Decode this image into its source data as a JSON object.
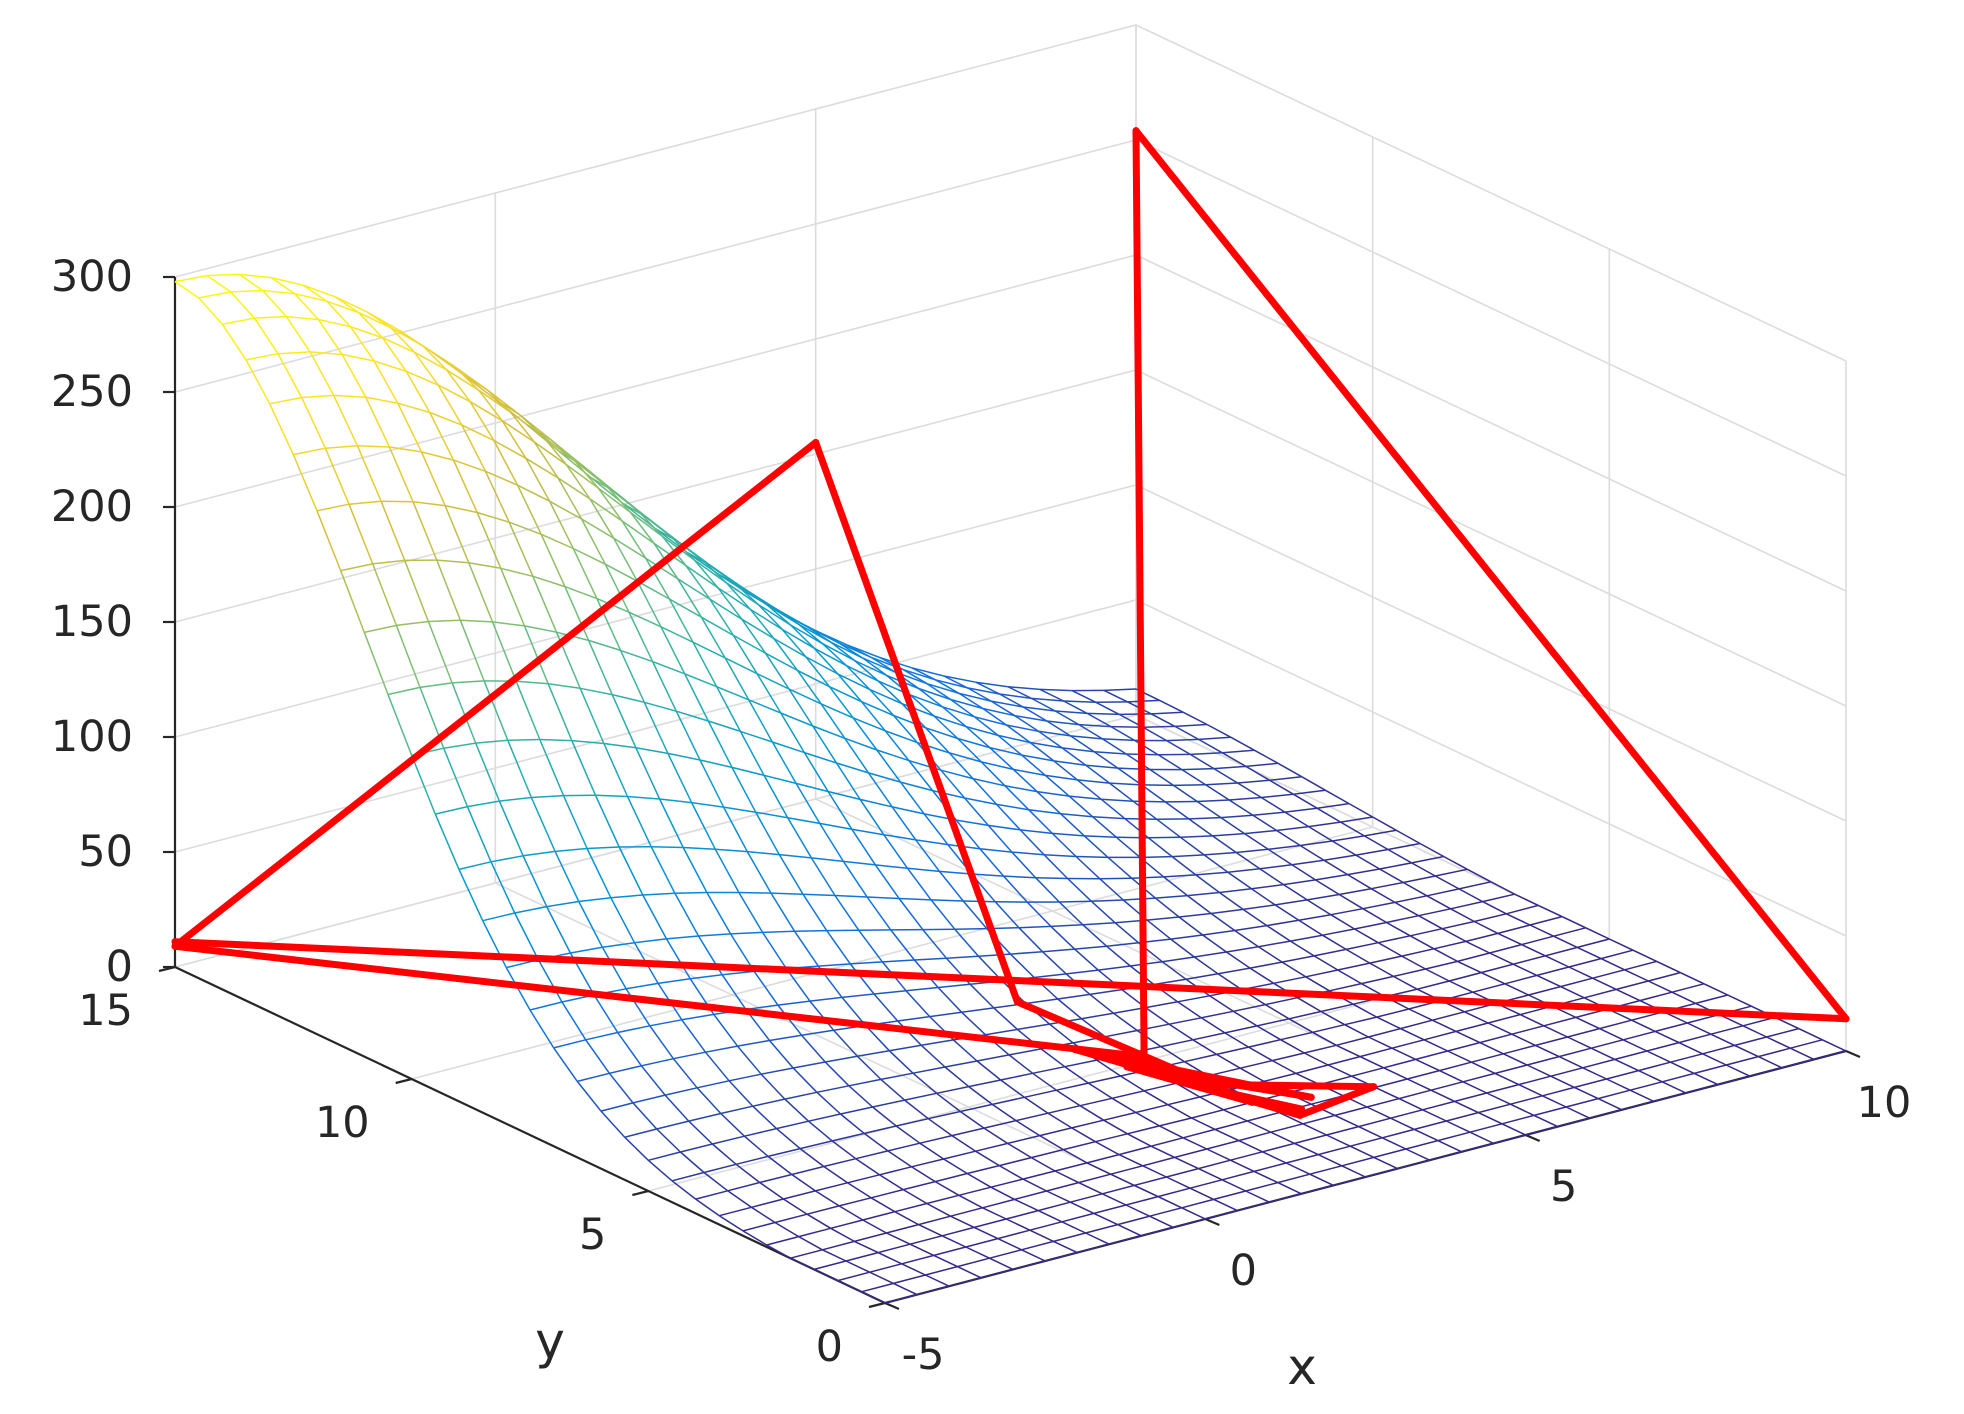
{
  "chart_data": {
    "type": "surface",
    "title": "",
    "xlabel": "x",
    "ylabel": "y",
    "zlabel": "",
    "xlim": [
      -5,
      10
    ],
    "ylim": [
      0,
      15
    ],
    "zlim": [
      0,
      300
    ],
    "x_ticks": [
      "-5",
      "0",
      "5",
      "10"
    ],
    "y_ticks": [
      "0",
      "5",
      "10",
      "15"
    ],
    "z_ticks": [
      "0",
      "50",
      "100",
      "150",
      "200",
      "250",
      "300"
    ],
    "grid": true,
    "colormap": "parula",
    "surface": {
      "style": "wireframe-mesh",
      "x_range": [
        -5,
        10
      ],
      "y_range": [
        0,
        15
      ],
      "resolution": 31,
      "peak_value": 300,
      "peak_location": {
        "x": -5,
        "y": 15
      }
    },
    "overlay_path": {
      "color": "#ff0000",
      "vertices": [
        {
          "x": -5,
          "y": 15,
          "z": 11
        },
        {
          "x": 10,
          "y": 0,
          "z": 14
        },
        {
          "x": 10,
          "y": 15,
          "z": 254
        },
        {
          "x": 2,
          "y": 4,
          "z": 17
        },
        {
          "x": -5,
          "y": 15,
          "z": 9
        },
        {
          "x": 5,
          "y": 15,
          "z": 155
        },
        {
          "x": 1.5,
          "y": 6,
          "z": 25
        },
        {
          "x": 2.8,
          "y": 2.8,
          "z": 3
        },
        {
          "x": 2.1,
          "y": 4.5,
          "z": 7
        },
        {
          "x": 3.5,
          "y": 2.5,
          "z": 3
        },
        {
          "x": 1.8,
          "y": 5.2,
          "z": 10
        },
        {
          "x": 3.1,
          "y": 2.2,
          "z": 1
        },
        {
          "x": 4.4,
          "y": 2.4,
          "z": 2
        },
        {
          "x": 2.4,
          "y": 3.6,
          "z": 6
        },
        {
          "x": 3.2,
          "y": 2.3,
          "z": 2
        }
      ]
    }
  }
}
